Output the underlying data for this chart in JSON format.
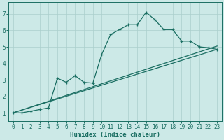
{
  "xlabel": "Humidex (Indice chaleur)",
  "xlim": [
    -0.5,
    23.5
  ],
  "ylim": [
    0.5,
    7.7
  ],
  "yticks": [
    1,
    2,
    3,
    4,
    5,
    6,
    7
  ],
  "xticks": [
    0,
    1,
    2,
    3,
    4,
    5,
    6,
    7,
    8,
    9,
    10,
    11,
    12,
    13,
    14,
    15,
    16,
    17,
    18,
    19,
    20,
    21,
    22,
    23
  ],
  "bg_color": "#cce9e7",
  "grid_color": "#aacfcc",
  "line_color": "#1a6e62",
  "line1_x": [
    0,
    1,
    2,
    3,
    4,
    5,
    6,
    7,
    8,
    9,
    10,
    11,
    12,
    13,
    14,
    15,
    16,
    17,
    18,
    19,
    20,
    21,
    22,
    23
  ],
  "line1_y": [
    1.0,
    1.0,
    1.1,
    1.2,
    1.3,
    3.1,
    2.85,
    3.25,
    2.85,
    2.8,
    4.55,
    5.75,
    6.05,
    6.35,
    6.35,
    7.1,
    6.65,
    6.05,
    6.05,
    5.35,
    5.35,
    5.0,
    4.95,
    4.85
  ],
  "line2_x": [
    0,
    23
  ],
  "line2_y": [
    1.0,
    4.85
  ],
  "line3_x": [
    0,
    23
  ],
  "line3_y": [
    1.0,
    5.05
  ]
}
